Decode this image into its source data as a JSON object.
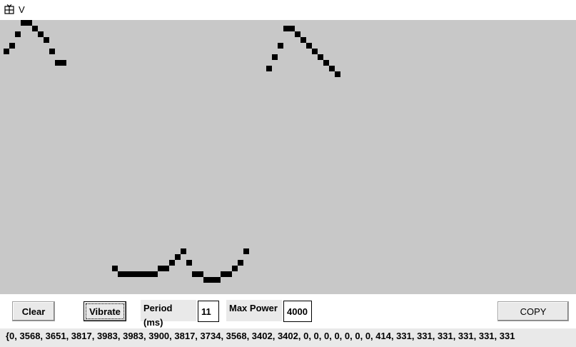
{
  "window": {
    "title": "V",
    "icon": "app-grid-icon"
  },
  "controls": {
    "clear_label": "Clear",
    "vibrate_label": "Vibrate",
    "period_label": "Period (ms)",
    "period_value": "11",
    "max_power_label": "Max Power",
    "max_power_value": "4000",
    "copy_label": "COPY"
  },
  "output": {
    "text": "{0, 3568, 3651, 3817, 3983, 3983, 3900, 3817, 3734, 3568, 3402, 3402, 0, 0, 0, 0, 0, 0, 0, 414, 331, 331, 331, 331, 331, 331"
  },
  "canvas": {
    "background": "#c8c8c8",
    "pixel_color": "#000000"
  }
}
